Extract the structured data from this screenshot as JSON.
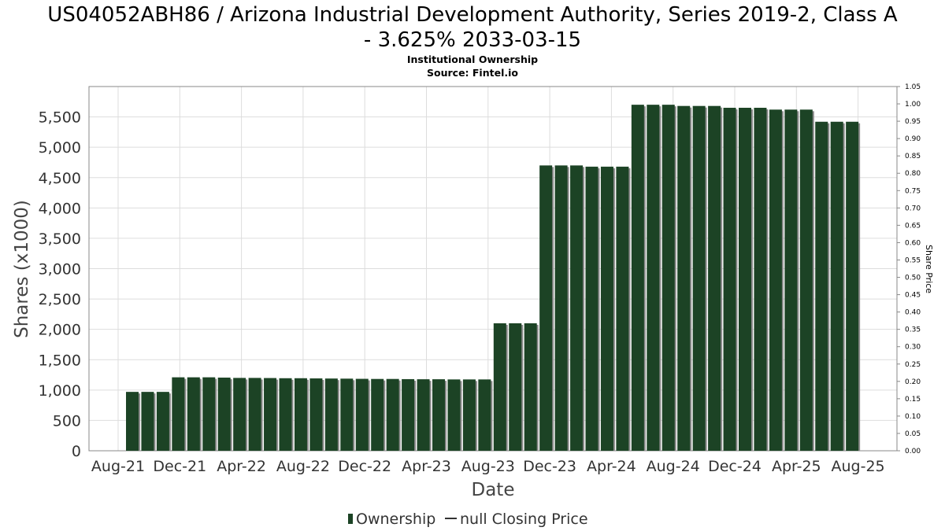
{
  "title_line1": "US04052ABH86 / Arizona Industrial Development Authority, Series 2019-2, Class A",
  "title_line2": "- 3.625% 2033-03-15",
  "subtitle1": "Institutional Ownership",
  "subtitle2": "Source: Fintel.io",
  "colors": {
    "bar": "#1c4325",
    "bar_shadow": "#8a8a8a",
    "grid": "#dddddd",
    "axis": "#888888"
  },
  "chart_data": {
    "type": "bar",
    "xlabel": "Date",
    "ylabel": "Shares (x1000)",
    "ylabel_right": "Share Price",
    "ylim": [
      0,
      6000
    ],
    "ylim_right": [
      0,
      1.05
    ],
    "y_ticks": [
      "0",
      "500",
      "1,000",
      "1,500",
      "2,000",
      "2,500",
      "3,000",
      "3,500",
      "4,000",
      "4,500",
      "5,000",
      "5,500"
    ],
    "y_tick_values": [
      0,
      500,
      1000,
      1500,
      2000,
      2500,
      3000,
      3500,
      4000,
      4500,
      5000,
      5500
    ],
    "y_right_ticks": [
      "0.00",
      "0.05",
      "0.10",
      "0.15",
      "0.20",
      "0.25",
      "0.30",
      "0.35",
      "0.40",
      "0.45",
      "0.50",
      "0.55",
      "0.60",
      "0.65",
      "0.70",
      "0.75",
      "0.80",
      "0.85",
      "0.90",
      "0.95",
      "1.00",
      "1.05"
    ],
    "x_ticks": [
      "Aug-21",
      "Dec-21",
      "Apr-22",
      "Aug-22",
      "Dec-22",
      "Apr-23",
      "Aug-23",
      "Dec-23",
      "Apr-24",
      "Aug-24",
      "Dec-24",
      "Apr-25",
      "Aug-25"
    ],
    "grid": true,
    "legend_position": "bottom-center",
    "series": [
      {
        "name": "Ownership",
        "values": [
          970,
          970,
          970,
          1210,
          1210,
          1210,
          1205,
          1200,
          1200,
          1198,
          1195,
          1195,
          1192,
          1190,
          1188,
          1185,
          1183,
          1183,
          1180,
          1178,
          1178,
          1175,
          1175,
          1175,
          2100,
          2100,
          2100,
          4700,
          4700,
          4700,
          4680,
          4680,
          4680,
          5700,
          5700,
          5700,
          5680,
          5680,
          5680,
          5650,
          5650,
          5650,
          5620,
          5620,
          5620,
          5420,
          5420,
          5420
        ]
      },
      {
        "name": "null Closing Price",
        "values": []
      }
    ]
  }
}
